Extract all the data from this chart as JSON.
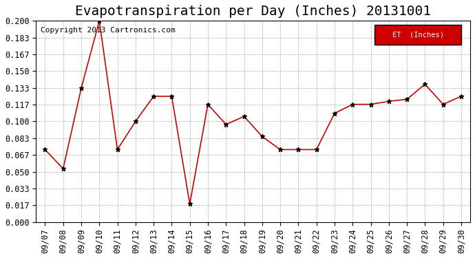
{
  "title": "Evapotranspiration per Day (Inches) 20131001",
  "copyright": "Copyright 2013 Cartronics.com",
  "legend_label": "ET  (Inches)",
  "dates": [
    "09/07",
    "09/08",
    "09/09",
    "09/10",
    "09/11",
    "09/12",
    "09/13",
    "09/14",
    "09/15",
    "09/16",
    "09/17",
    "09/18",
    "09/19",
    "09/20",
    "09/21",
    "09/22",
    "09/23",
    "09/24",
    "09/25",
    "09/26",
    "09/27",
    "09/28",
    "09/29",
    "09/30"
  ],
  "values": [
    0.072,
    0.053,
    0.133,
    0.2,
    0.072,
    0.1,
    0.125,
    0.125,
    0.018,
    0.117,
    0.097,
    0.105,
    0.085,
    0.072,
    0.072,
    0.072,
    0.108,
    0.117,
    0.117,
    0.12,
    0.122,
    0.137,
    0.117,
    0.125
  ],
  "line_color": "#cc0000",
  "marker_color": "#000000",
  "background_color": "#ffffff",
  "grid_color": "#aaaaaa",
  "ylim": [
    0.0,
    0.2
  ],
  "yticks": [
    0.0,
    0.017,
    0.033,
    0.05,
    0.067,
    0.083,
    0.1,
    0.117,
    0.133,
    0.15,
    0.167,
    0.183,
    0.2
  ],
  "legend_bg": "#cc0000",
  "legend_text_color": "#ffffff",
  "title_fontsize": 14,
  "tick_fontsize": 8.5,
  "copyright_fontsize": 8
}
